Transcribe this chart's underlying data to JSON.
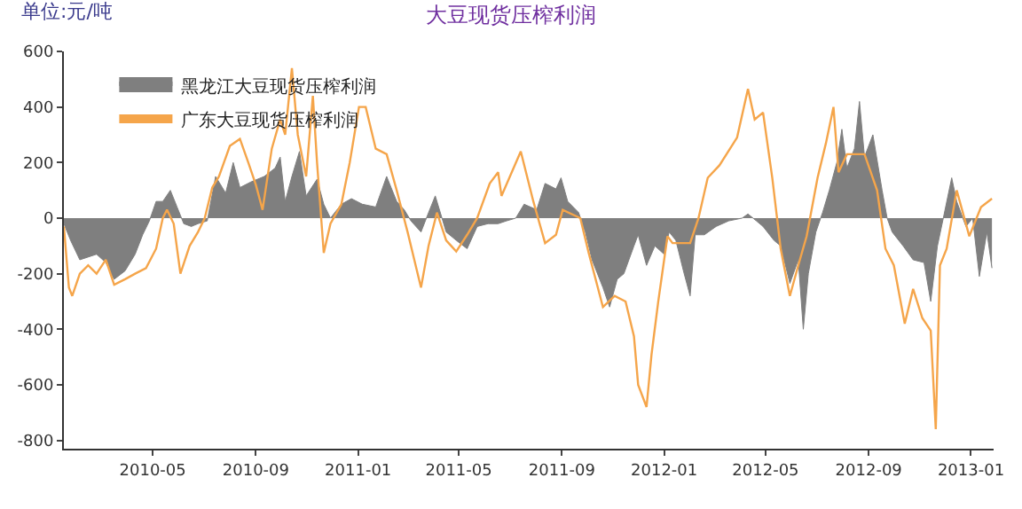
{
  "chart_data": {
    "type": "area",
    "title": "大豆现货压榨利润",
    "ylabel": "单位:元/吨",
    "xlim": [
      "2010-01-15",
      "2013-01-28"
    ],
    "xticks": [
      "2010-05",
      "2010-09",
      "2011-01",
      "2011-05",
      "2011-09",
      "2012-01",
      "2012-05",
      "2012-09",
      "2013-01"
    ],
    "ylim": [
      -830,
      600
    ],
    "yticks": [
      -800,
      -600,
      -400,
      -200,
      0,
      200,
      400,
      600
    ],
    "grid": null,
    "legend": "top left",
    "marker": "none",
    "line_style": "solid",
    "series": [
      {
        "name": "黑龙江大豆现货压榨利润",
        "color": "#7f7f7f",
        "x": [
          "2010-01-15",
          "2010-01-23",
          "2010-02-03",
          "2010-02-23",
          "2010-03-06",
          "2010-03-16",
          "2010-03-29",
          "2010-04-10",
          "2010-04-19",
          "2010-04-27",
          "2010-05-05",
          "2010-05-13",
          "2010-05-22",
          "2010-05-30",
          "2010-06-07",
          "2010-06-16",
          "2010-06-24",
          "2010-07-05",
          "2010-07-15",
          "2010-07-27",
          "2010-08-05",
          "2010-08-13",
          "2010-08-26",
          "2010-09-11",
          "2010-09-24",
          "2010-09-30",
          "2010-10-06",
          "2010-10-14",
          "2010-10-23",
          "2010-10-31",
          "2010-11-13",
          "2010-11-21",
          "2010-11-29",
          "2010-12-12",
          "2010-12-24",
          "2011-01-06",
          "2011-01-22",
          "2011-02-04",
          "2011-02-16",
          "2011-02-25",
          "2011-03-05",
          "2011-03-17",
          "2011-03-26",
          "2011-04-03",
          "2011-04-16",
          "2011-04-28",
          "2011-05-11",
          "2011-05-23",
          "2011-06-05",
          "2011-06-17",
          "2011-06-27",
          "2011-07-08",
          "2011-07-18",
          "2011-08-02",
          "2011-08-12",
          "2011-08-25",
          "2011-08-31",
          "2011-09-08",
          "2011-09-21",
          "2011-09-29",
          "2011-10-07",
          "2011-10-20",
          "2011-10-28",
          "2011-11-06",
          "2011-11-14",
          "2011-11-20",
          "2011-11-26",
          "2011-12-01",
          "2011-12-11",
          "2011-12-21",
          "2012-01-01",
          "2012-01-07",
          "2012-01-15",
          "2012-01-24",
          "2012-02-01",
          "2012-02-07",
          "2012-02-18",
          "2012-03-03",
          "2012-03-18",
          "2012-04-03",
          "2012-04-10",
          "2012-04-20",
          "2012-04-28",
          "2012-05-11",
          "2012-05-19",
          "2012-05-30",
          "2012-06-09",
          "2012-06-15",
          "2012-06-21",
          "2012-06-30",
          "2012-07-08",
          "2012-07-16",
          "2012-07-25",
          "2012-07-31",
          "2012-08-06",
          "2012-08-15",
          "2012-08-21",
          "2012-08-27",
          "2012-09-06",
          "2012-09-17",
          "2012-09-23",
          "2012-09-29",
          "2012-10-12",
          "2012-10-24",
          "2012-11-06",
          "2012-11-14",
          "2012-11-22",
          "2012-11-29",
          "2012-12-09",
          "2012-12-15",
          "2012-12-26",
          "2013-01-03",
          "2013-01-11",
          "2013-01-20",
          "2013-01-26"
        ],
        "values": [
          -20,
          -80,
          -150,
          -130,
          -160,
          -220,
          -190,
          -130,
          -60,
          -10,
          60,
          60,
          100,
          40,
          -20,
          -30,
          -20,
          -10,
          150,
          90,
          200,
          110,
          130,
          150,
          180,
          220,
          60,
          150,
          240,
          80,
          140,
          50,
          0,
          50,
          70,
          50,
          40,
          150,
          60,
          30,
          -10,
          -50,
          20,
          80,
          -50,
          -80,
          -110,
          -30,
          -20,
          -20,
          -10,
          0,
          50,
          30,
          125,
          105,
          145,
          60,
          20,
          -50,
          -150,
          -250,
          -320,
          -220,
          -200,
          -150,
          -100,
          -60,
          -170,
          -100,
          -130,
          -50,
          -80,
          -190,
          -280,
          -60,
          -60,
          -30,
          -10,
          0,
          15,
          -10,
          -30,
          -80,
          -100,
          -235,
          -150,
          -400,
          -200,
          -50,
          20,
          100,
          200,
          320,
          180,
          250,
          420,
          220,
          300,
          100,
          0,
          -50,
          -100,
          -150,
          -160,
          -300,
          -100,
          0,
          145,
          60,
          -30,
          0,
          -210,
          -50,
          -180
        ]
      },
      {
        "name": "广东大豆现货压榨利润",
        "type": "line",
        "color": "#f5a54a",
        "x": [
          "2010-01-15",
          "2010-01-21",
          "2010-01-25",
          "2010-02-03",
          "2010-02-13",
          "2010-02-23",
          "2010-03-06",
          "2010-03-16",
          "2010-03-29",
          "2010-04-10",
          "2010-04-23",
          "2010-05-05",
          "2010-05-13",
          "2010-05-18",
          "2010-05-26",
          "2010-06-03",
          "2010-06-14",
          "2010-06-24",
          "2010-07-02",
          "2010-07-11",
          "2010-07-19",
          "2010-08-01",
          "2010-08-13",
          "2010-08-23",
          "2010-09-01",
          "2010-09-09",
          "2010-09-20",
          "2010-09-30",
          "2010-10-06",
          "2010-10-14",
          "2010-10-21",
          "2010-10-31",
          "2010-11-08",
          "2010-11-13",
          "2010-11-21",
          "2010-11-29",
          "2010-12-12",
          "2010-12-22",
          "2011-01-02",
          "2011-01-10",
          "2011-01-22",
          "2011-02-04",
          "2011-02-16",
          "2011-03-01",
          "2011-03-09",
          "2011-03-17",
          "2011-03-26",
          "2011-04-05",
          "2011-04-16",
          "2011-04-28",
          "2011-05-11",
          "2011-05-23",
          "2011-06-07",
          "2011-06-17",
          "2011-06-21",
          "2011-07-14",
          "2011-07-29",
          "2011-08-12",
          "2011-08-25",
          "2011-09-02",
          "2011-09-23",
          "2011-10-03",
          "2011-10-20",
          "2011-11-03",
          "2011-11-16",
          "2011-11-26",
          "2011-12-01",
          "2011-12-11",
          "2011-12-17",
          "2011-12-25",
          "2012-01-01",
          "2012-01-05",
          "2012-01-11",
          "2012-02-01",
          "2012-02-11",
          "2012-02-22",
          "2012-03-07",
          "2012-03-28",
          "2012-04-10",
          "2012-04-18",
          "2012-04-28",
          "2012-05-09",
          "2012-05-19",
          "2012-05-30",
          "2012-06-09",
          "2012-06-19",
          "2012-07-02",
          "2012-07-12",
          "2012-07-21",
          "2012-07-27",
          "2012-08-06",
          "2012-08-27",
          "2012-09-11",
          "2012-09-21",
          "2012-10-01",
          "2012-10-14",
          "2012-10-24",
          "2012-11-04",
          "2012-11-14",
          "2012-11-20",
          "2012-11-25",
          "2012-12-03",
          "2012-12-15",
          "2012-12-30",
          "2013-01-13",
          "2013-01-26"
        ],
        "values": [
          -30,
          -250,
          -280,
          -200,
          -170,
          -200,
          -150,
          -240,
          -220,
          -200,
          -180,
          -110,
          0,
          30,
          -20,
          -200,
          -100,
          -50,
          0,
          110,
          150,
          260,
          285,
          200,
          120,
          30,
          250,
          355,
          300,
          540,
          300,
          150,
          440,
          200,
          -125,
          -20,
          50,
          200,
          400,
          400,
          250,
          230,
          100,
          -50,
          -150,
          -250,
          -100,
          20,
          -80,
          -120,
          -60,
          0,
          125,
          165,
          80,
          240,
          60,
          -90,
          -60,
          30,
          0,
          -125,
          -320,
          -280,
          -300,
          -425,
          -600,
          -680,
          -490,
          -300,
          -150,
          -65,
          -90,
          -90,
          0,
          145,
          190,
          290,
          465,
          355,
          380,
          145,
          -110,
          -280,
          -170,
          -65,
          145,
          270,
          400,
          165,
          230,
          230,
          100,
          -110,
          -170,
          -380,
          -255,
          -360,
          -405,
          -760,
          -170,
          -110,
          100,
          -65,
          40,
          70
        ]
      }
    ]
  }
}
